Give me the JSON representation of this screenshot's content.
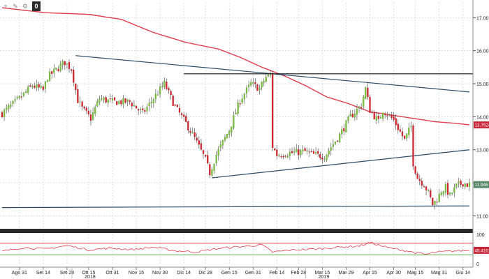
{
  "toolbar": {
    "buttons": [
      {
        "icon": "pin-icon",
        "glyph": "⌖"
      },
      {
        "icon": "pencil-icon",
        "glyph": "✎"
      },
      {
        "icon": "settings-icon",
        "glyph": "⚙"
      },
      {
        "icon": "zero-badge-icon",
        "label": "0"
      }
    ]
  },
  "colors": {
    "up": "#7fc241",
    "down": "#d9232e",
    "ma": "#e03c4e",
    "trend": "#2c4a66",
    "level": "#111111",
    "grid": "#d3d3d3",
    "price_badge": "#5a8a6a",
    "ma_badge": "#c8283a"
  },
  "chart_data": [
    {
      "type": "candlestick",
      "title": "",
      "y_ticks": [
        "17.00",
        "16.00",
        "15.00",
        "14.00",
        "13.00",
        "12.00",
        "11.00"
      ],
      "ylim": [
        10.65,
        17.45
      ],
      "x_ticks": [
        "Ago 31",
        "Set 14",
        "Set 28",
        "Ott 15",
        "Ott 31",
        "Nov 15",
        "Nov 30",
        "Dic 14",
        "Dic 28",
        "Gen 15",
        "Gen 31",
        "Feb 14",
        "Feb 28",
        "Mar 15",
        "Mar 29",
        "Apr 15",
        "Apr 30",
        "Mag 15",
        "Mag 31",
        "Giu 14"
      ],
      "year_labels": [
        {
          "label": "2018",
          "at": "Ott 31"
        },
        {
          "label": "2019",
          "at": "Mar 29"
        }
      ],
      "last_price": "11.946",
      "ma_value": "13.7524",
      "price_path": [
        [
          0,
          14.1
        ],
        [
          8,
          14.55
        ],
        [
          14,
          14.95
        ],
        [
          19,
          14.8
        ],
        [
          21,
          15.2
        ],
        [
          29,
          15.65
        ],
        [
          32,
          15.45
        ],
        [
          35,
          14.5
        ],
        [
          37,
          14.25
        ],
        [
          41,
          13.95
        ],
        [
          45,
          14.55
        ],
        [
          51,
          14.45
        ],
        [
          59,
          14.45
        ],
        [
          65,
          14.1
        ],
        [
          70,
          14.55
        ],
        [
          75,
          15.0
        ],
        [
          80,
          14.3
        ],
        [
          85,
          13.8
        ],
        [
          89,
          13.35
        ],
        [
          94,
          12.7
        ],
        [
          96,
          12.3
        ],
        [
          99,
          12.85
        ],
        [
          105,
          13.6
        ],
        [
          110,
          14.5
        ],
        [
          115,
          15.0
        ],
        [
          119,
          14.85
        ],
        [
          122,
          15.2
        ],
        [
          124,
          15.25
        ],
        [
          125,
          13.1
        ],
        [
          127,
          12.85
        ],
        [
          133,
          12.9
        ],
        [
          140,
          12.95
        ],
        [
          144,
          12.85
        ],
        [
          149,
          12.8
        ],
        [
          156,
          13.45
        ],
        [
          161,
          14.0
        ],
        [
          166,
          14.35
        ],
        [
          168,
          14.85
        ],
        [
          170,
          14.2
        ],
        [
          174,
          13.85
        ],
        [
          176,
          14.2
        ],
        [
          181,
          13.9
        ],
        [
          186,
          13.3
        ],
        [
          189,
          13.7
        ],
        [
          190,
          12.6
        ],
        [
          192,
          12.15
        ],
        [
          195,
          11.95
        ],
        [
          197,
          11.7
        ],
        [
          199,
          11.35
        ],
        [
          201,
          11.5
        ],
        [
          203,
          11.75
        ],
        [
          205,
          11.85
        ],
        [
          207,
          11.6
        ],
        [
          209,
          11.8
        ],
        [
          210,
          11.9
        ],
        [
          213,
          12.0
        ],
        [
          215,
          11.946
        ]
      ],
      "ma_path": [
        [
          0,
          17.3
        ],
        [
          20,
          17.15
        ],
        [
          40,
          17.1
        ],
        [
          55,
          16.95
        ],
        [
          70,
          16.55
        ],
        [
          85,
          16.25
        ],
        [
          100,
          16.05
        ],
        [
          110,
          15.8
        ],
        [
          120,
          15.5
        ],
        [
          130,
          15.25
        ],
        [
          140,
          14.95
        ],
        [
          150,
          14.6
        ],
        [
          160,
          14.4
        ],
        [
          170,
          14.15
        ],
        [
          180,
          14.05
        ],
        [
          190,
          13.95
        ],
        [
          200,
          13.85
        ],
        [
          210,
          13.8
        ],
        [
          216,
          13.7524
        ]
      ],
      "resistance_level": 15.3,
      "support_line": [
        [
          0,
          11.25
        ],
        [
          216,
          11.3
        ]
      ],
      "upper_trend": [
        [
          34,
          15.85
        ],
        [
          216,
          14.75
        ]
      ],
      "lower_trend": [
        [
          97,
          12.15
        ],
        [
          216,
          13.0
        ]
      ]
    },
    {
      "type": "oscillator",
      "y_ticks": [
        "100",
        "0"
      ],
      "ylim": [
        0,
        100
      ],
      "upper_band": 70,
      "lower_band": 30,
      "last_value": "45.4101",
      "path": [
        [
          0,
          42
        ],
        [
          10,
          55
        ],
        [
          20,
          50
        ],
        [
          30,
          62
        ],
        [
          40,
          47
        ],
        [
          50,
          53
        ],
        [
          60,
          48
        ],
        [
          70,
          56
        ],
        [
          80,
          44
        ],
        [
          90,
          40
        ],
        [
          100,
          52
        ],
        [
          110,
          58
        ],
        [
          120,
          64
        ],
        [
          125,
          40
        ],
        [
          135,
          47
        ],
        [
          145,
          50
        ],
        [
          155,
          56
        ],
        [
          165,
          60
        ],
        [
          170,
          72
        ],
        [
          178,
          55
        ],
        [
          186,
          45
        ],
        [
          192,
          36
        ],
        [
          196,
          32
        ],
        [
          202,
          40
        ],
        [
          208,
          43
        ],
        [
          216,
          45.41
        ]
      ]
    }
  ]
}
